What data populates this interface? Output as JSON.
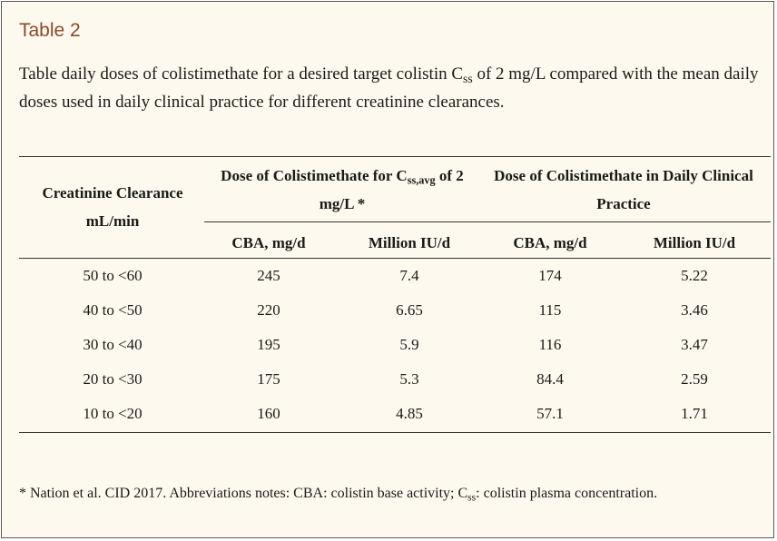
{
  "table_label": "Table 2",
  "caption": {
    "part1": "Table daily doses of colistimethate for a desired target colistin C",
    "sub": "ss",
    "part2": " of 2 mg/L compared with the mean daily doses used in daily clinical practice for different creatinine clearances."
  },
  "headers": {
    "col1_line1": "Creatinine Clearance",
    "col1_line2": "mL/min",
    "group1_part1": "Dose of Colistimethate for C",
    "group1_sub": "ss,avg",
    "group1_part2": " of 2 mg/L *",
    "group2": "Dose of Colistimethate in Daily Clinical Practice",
    "sub_cba_1": "CBA, mg/d",
    "sub_miu_1": "Million IU/d",
    "sub_cba_2": "CBA, mg/d",
    "sub_miu_2": "Million IU/d"
  },
  "rows": [
    [
      "50 to <60",
      "245",
      "7.4",
      "174",
      "5.22"
    ],
    [
      "40 to <50",
      "220",
      "6.65",
      "115",
      "3.46"
    ],
    [
      "30 to <40",
      "195",
      "5.9",
      "116",
      "3.47"
    ],
    [
      "20 to <30",
      "175",
      "5.3",
      "84.4",
      "2.59"
    ],
    [
      "10 to <20",
      "160",
      "4.85",
      "57.1",
      "1.71"
    ]
  ],
  "footnote": {
    "part1": "* Nation et al. CID 2017. Abbreviations notes: CBA: colistin base activity; C",
    "sub": "ss",
    "part2": ": colistin plasma concentration."
  }
}
